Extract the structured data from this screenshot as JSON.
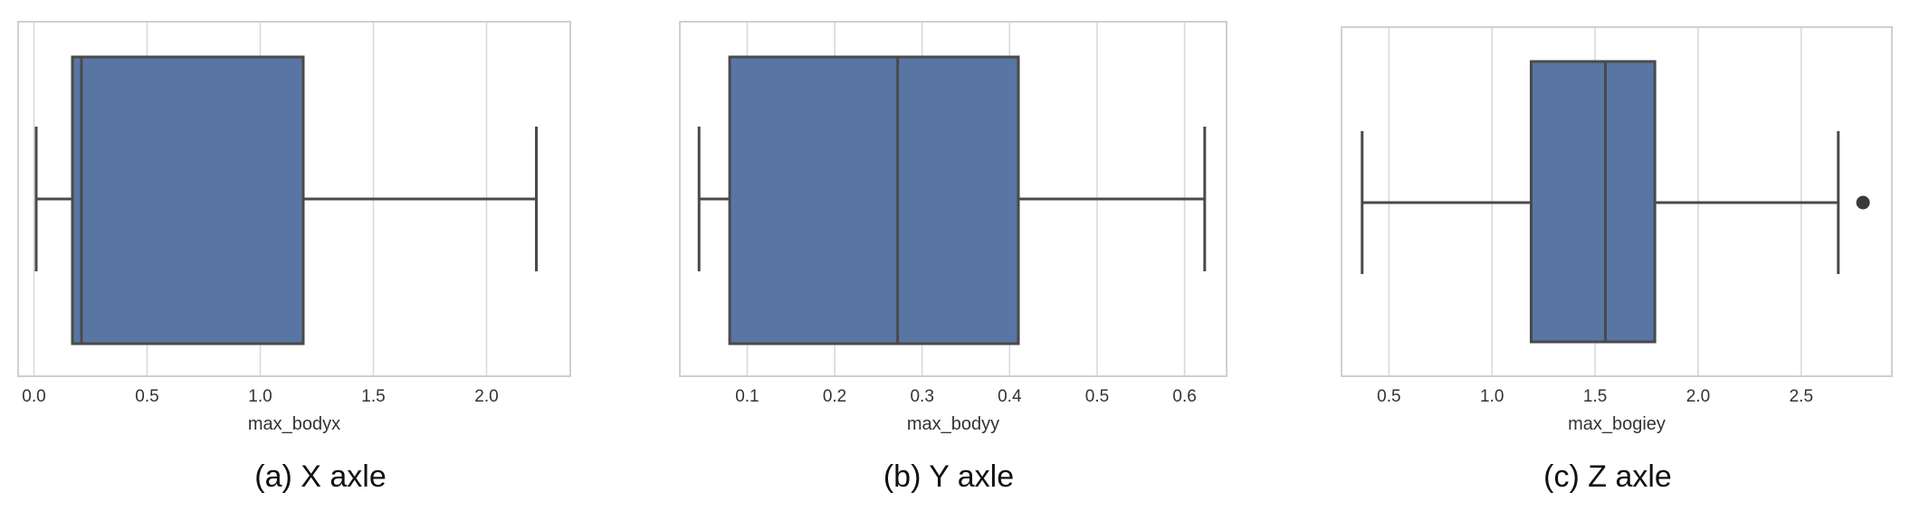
{
  "chart_data": [
    {
      "type": "boxplot",
      "xlabel": "max_bodyx",
      "caption": "(a) X axle",
      "xlim": [
        -0.07,
        2.37
      ],
      "ticks": [
        0.0,
        0.5,
        1.0,
        1.5,
        2.0
      ],
      "tick_labels": [
        "0.0",
        "0.5",
        "1.0",
        "1.5",
        "2.0"
      ],
      "grid": true,
      "box": {
        "whisker_low": 0.01,
        "q1": 0.17,
        "median": 0.21,
        "q3": 1.19,
        "whisker_high": 2.22,
        "outliers": []
      },
      "colors": {
        "box_fill": "#5875a4",
        "box_edge": "#4a4a4a",
        "grid": "#d9d9d9",
        "frame": "#d0d0d0"
      }
    },
    {
      "type": "boxplot",
      "xlabel": "max_bodyy",
      "caption": "(b) Y axle",
      "xlim": [
        0.023,
        0.648
      ],
      "ticks": [
        0.1,
        0.2,
        0.3,
        0.4,
        0.5,
        0.6
      ],
      "tick_labels": [
        "0.1",
        "0.2",
        "0.3",
        "0.4",
        "0.5",
        "0.6"
      ],
      "grid": true,
      "box": {
        "whisker_low": 0.045,
        "q1": 0.08,
        "median": 0.272,
        "q3": 0.41,
        "whisker_high": 0.623,
        "outliers": []
      },
      "colors": {
        "box_fill": "#5875a4",
        "box_edge": "#4a4a4a",
        "grid": "#d9d9d9",
        "frame": "#d0d0d0"
      }
    },
    {
      "type": "boxplot",
      "xlabel": "max_bogiey",
      "caption": "(c) Z axle",
      "xlim": [
        0.27,
        2.94
      ],
      "ticks": [
        0.5,
        1.0,
        1.5,
        2.0,
        2.5
      ],
      "tick_labels": [
        "0.5",
        "1.0",
        "1.5",
        "2.0",
        "2.5"
      ],
      "grid": true,
      "box": {
        "whisker_low": 0.37,
        "q1": 1.19,
        "median": 1.55,
        "q3": 1.79,
        "whisker_high": 2.68,
        "outliers": [
          2.8
        ]
      },
      "colors": {
        "box_fill": "#5875a4",
        "box_edge": "#4a4a4a",
        "grid": "#d9d9d9",
        "frame": "#d0d0d0"
      }
    }
  ]
}
